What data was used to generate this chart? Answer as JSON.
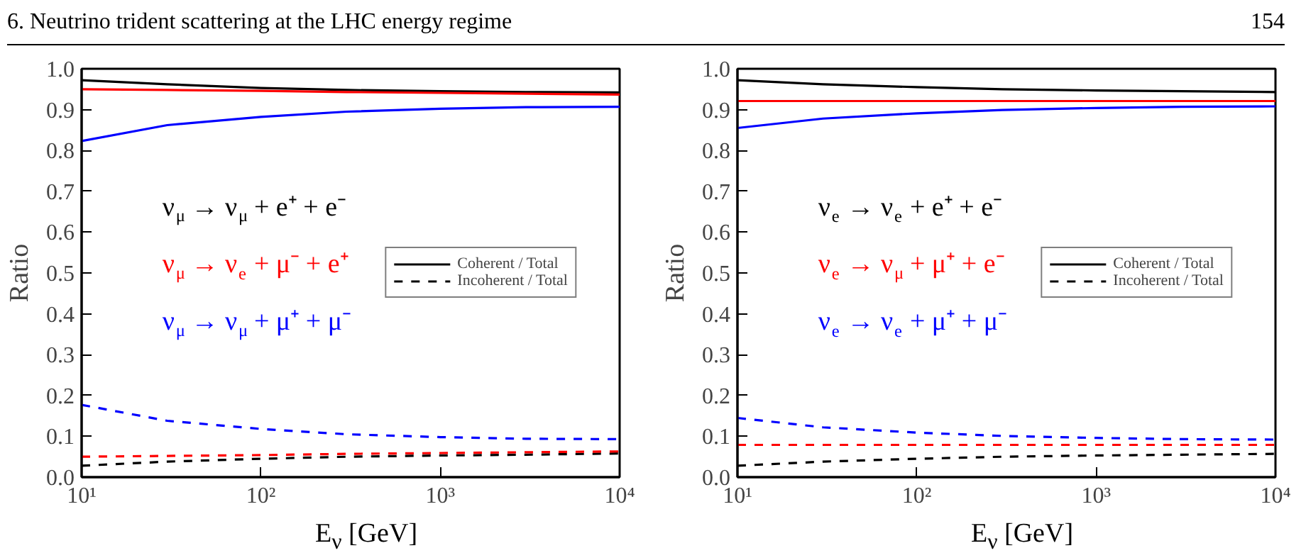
{
  "chart_data": [
    {
      "type": "line",
      "title": "6. Neutrino trident scattering at the LHC energy regime",
      "xlabel": "E$_{ν}$ [GeV]",
      "ylabel": "Ratio",
      "log": "x",
      "x": [
        10,
        30,
        100,
        300,
        1000,
        3000,
        10000
      ],
      "xlim": [
        10,
        10000
      ],
      "xticks": [
        {
          "value": 10,
          "label": "10¹"
        },
        {
          "value": 100,
          "label": "10²"
        },
        {
          "value": 1000,
          "label": "10³"
        },
        {
          "value": 10000,
          "label": "10⁴"
        }
      ],
      "ylim": [
        0,
        1
      ],
      "yticks": [
        {
          "value": 0,
          "label": "0.0"
        },
        {
          "value": 0.1,
          "label": "0.1"
        },
        {
          "value": 0.2,
          "label": "0.2"
        },
        {
          "value": 0.3,
          "label": "0.3"
        },
        {
          "value": 0.4,
          "label": "0.4"
        },
        {
          "value": 0.5,
          "label": "0.5"
        },
        {
          "value": 0.6,
          "label": "0.6"
        },
        {
          "value": 0.7,
          "label": "0.7"
        },
        {
          "value": 0.8,
          "label": "0.8"
        },
        {
          "value": 0.9,
          "label": "0.9"
        },
        {
          "value": 1,
          "label": "1.0"
        }
      ],
      "legend": "right",
      "marker": "none",
      "annotations": [
        "ν$_{μ}$ → ν$_{μ}$ + e⁺ + e⁻",
        "ν$_{μ}$ → ν$_{e}$ + μ⁻ + e⁺",
        "ν$_{μ}$ → ν$_{μ}$ + μ⁺ + μ⁻"
      ],
      "series": [
        {
          "name": "Coherent / Total",
          "color": "#000000",
          "line_style": "solid",
          "values": [
            0.972,
            0.962,
            0.953,
            0.948,
            0.945,
            0.943,
            0.942
          ]
        },
        {
          "color": "#ff0000",
          "line_style": "solid",
          "values": [
            0.95,
            0.948,
            0.946,
            0.943,
            0.941,
            0.939,
            0.937
          ]
        },
        {
          "color": "#0000ff",
          "line_style": "solid",
          "values": [
            0.823,
            0.862,
            0.882,
            0.895,
            0.902,
            0.906,
            0.907
          ]
        },
        {
          "name": "Incoherent / Total",
          "color": "#000000",
          "line_style": "dashed",
          "values": [
            0.028,
            0.038,
            0.045,
            0.05,
            0.053,
            0.055,
            0.058
          ]
        },
        {
          "color": "#ff0000",
          "line_style": "dashed",
          "values": [
            0.05,
            0.052,
            0.054,
            0.057,
            0.059,
            0.061,
            0.063
          ]
        },
        {
          "color": "#0000ff",
          "line_style": "dashed",
          "values": [
            0.177,
            0.138,
            0.118,
            0.105,
            0.098,
            0.094,
            0.093
          ]
        }
      ]
    },
    {
      "type": "line",
      "xlabel": "E$_{ν}$ [GeV]",
      "ylabel": "Ratio",
      "log": "x",
      "x": [
        10,
        30,
        100,
        300,
        1000,
        3000,
        10000
      ],
      "xlim": [
        10,
        10000
      ],
      "xticks": [
        {
          "value": 10,
          "label": "10¹"
        },
        {
          "value": 100,
          "label": "10²"
        },
        {
          "value": 1000,
          "label": "10³"
        },
        {
          "value": 10000,
          "label": "10⁴"
        }
      ],
      "ylim": [
        0,
        1
      ],
      "yticks": [
        {
          "value": 0,
          "label": "0.0"
        },
        {
          "value": 0.1,
          "label": "0.1"
        },
        {
          "value": 0.2,
          "label": "0.2"
        },
        {
          "value": 0.3,
          "label": "0.3"
        },
        {
          "value": 0.4,
          "label": "0.4"
        },
        {
          "value": 0.5,
          "label": "0.5"
        },
        {
          "value": 0.6,
          "label": "0.6"
        },
        {
          "value": 0.7,
          "label": "0.7"
        },
        {
          "value": 0.8,
          "label": "0.8"
        },
        {
          "value": 0.9,
          "label": "0.9"
        },
        {
          "value": 1,
          "label": "1.0"
        }
      ],
      "legend": "right",
      "marker": "none",
      "annotations": [
        "ν$_{e}$ → ν$_{e}$ + e⁺ + e⁻",
        "ν$_{e}$ → ν$_{μ}$ + μ⁺ + e⁻",
        "ν$_{e}$ → ν$_{e}$ + μ⁺ + μ⁻",
        "154"
      ],
      "series": [
        {
          "name": "Coherent / Total",
          "color": "#000000",
          "line_style": "solid",
          "values": [
            0.972,
            0.962,
            0.955,
            0.95,
            0.947,
            0.945,
            0.943
          ]
        },
        {
          "color": "#ff0000",
          "line_style": "solid",
          "values": [
            0.921,
            0.921,
            0.921,
            0.921,
            0.921,
            0.921,
            0.921
          ]
        },
        {
          "color": "#0000ff",
          "line_style": "solid",
          "values": [
            0.855,
            0.878,
            0.891,
            0.899,
            0.904,
            0.907,
            0.908
          ]
        },
        {
          "name": "Incoherent / Total",
          "color": "#000000",
          "line_style": "dashed",
          "values": [
            0.028,
            0.038,
            0.045,
            0.05,
            0.053,
            0.055,
            0.057
          ]
        },
        {
          "color": "#ff0000",
          "line_style": "dashed",
          "values": [
            0.079,
            0.079,
            0.079,
            0.079,
            0.079,
            0.079,
            0.079
          ]
        },
        {
          "color": "#0000ff",
          "line_style": "dashed",
          "values": [
            0.145,
            0.122,
            0.109,
            0.101,
            0.096,
            0.093,
            0.092
          ]
        }
      ]
    }
  ]
}
